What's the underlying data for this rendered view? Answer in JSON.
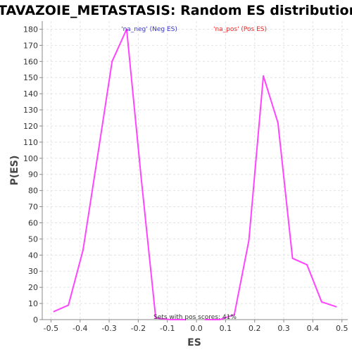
{
  "chart_data": {
    "type": "line",
    "title": "TAVAZOIE_METASTASIS: Random ES distribution",
    "xlabel": "ES",
    "ylabel": "P(ES)",
    "xlim": [
      -0.53,
      0.52
    ],
    "ylim": [
      0,
      185
    ],
    "x_ticks": [
      "-0.5",
      "-0.4",
      "-0.3",
      "-0.2",
      "-0.1",
      "0.0",
      "0.1",
      "0.2",
      "0.3",
      "0.4",
      "0.5"
    ],
    "y_ticks": [
      "0",
      "10",
      "20",
      "30",
      "40",
      "50",
      "60",
      "70",
      "80",
      "90",
      "100",
      "110",
      "120",
      "130",
      "140",
      "150",
      "160",
      "170",
      "180"
    ],
    "grid": true,
    "series": [
      {
        "name": "'na_neg' (Neg ES)",
        "legend_color": "#3333cc",
        "line_color": "#ff44ff",
        "x": [
          -0.49,
          -0.44,
          -0.39,
          -0.34,
          -0.29,
          -0.24,
          -0.19,
          -0.14,
          -0.09,
          -0.04
        ],
        "y": [
          5,
          9,
          43,
          101,
          160,
          180,
          88,
          1,
          0,
          0
        ]
      },
      {
        "name": "'na_pos' (Pos ES)",
        "legend_color": "#ee2222",
        "line_color": "#ff44ff",
        "x": [
          0.03,
          0.08,
          0.13,
          0.18,
          0.23,
          0.28,
          0.33,
          0.38,
          0.43,
          0.48
        ],
        "y": [
          0,
          0,
          3,
          49,
          151,
          122,
          38,
          34,
          11,
          8
        ]
      }
    ],
    "annotation": "Sets with pos scores: 41%"
  }
}
